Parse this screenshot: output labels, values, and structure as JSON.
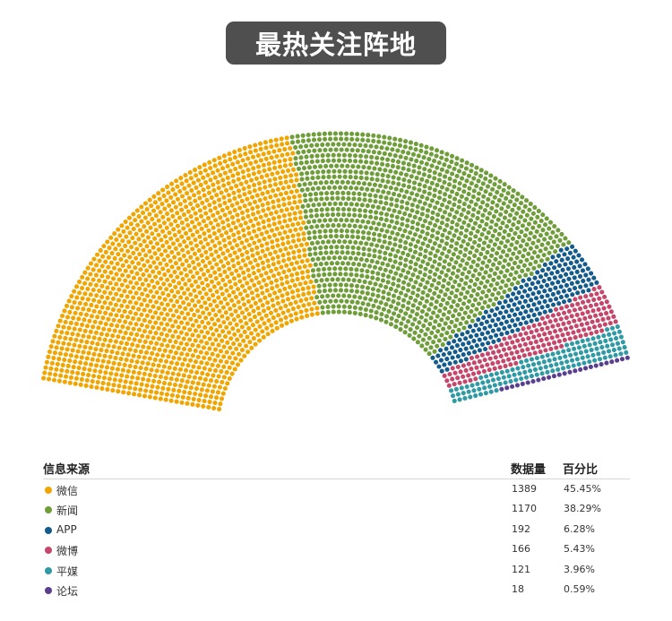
{
  "title": "最热关注阵地",
  "legend": {
    "col_source": "信息来源",
    "col_count": "数据量",
    "col_percent": "百分比"
  },
  "chart_data": {
    "type": "pie",
    "variant": "parliament-dot-semicircle",
    "title": "最热关注阵地",
    "series": [
      {
        "name": "微信",
        "value": 1389,
        "percent": "45.45%",
        "color": "#f0a500"
      },
      {
        "name": "新闻",
        "value": 1170,
        "percent": "38.29%",
        "color": "#6e9d3a"
      },
      {
        "name": "APP",
        "value": 192,
        "percent": "6.28%",
        "color": "#135b8c"
      },
      {
        "name": "微博",
        "value": 166,
        "percent": "5.43%",
        "color": "#c5466a"
      },
      {
        "name": "平媒",
        "value": 121,
        "percent": "3.96%",
        "color": "#2f9aa3"
      },
      {
        "name": "论坛",
        "value": 18,
        "percent": "0.59%",
        "color": "#5a3f8f"
      }
    ]
  }
}
